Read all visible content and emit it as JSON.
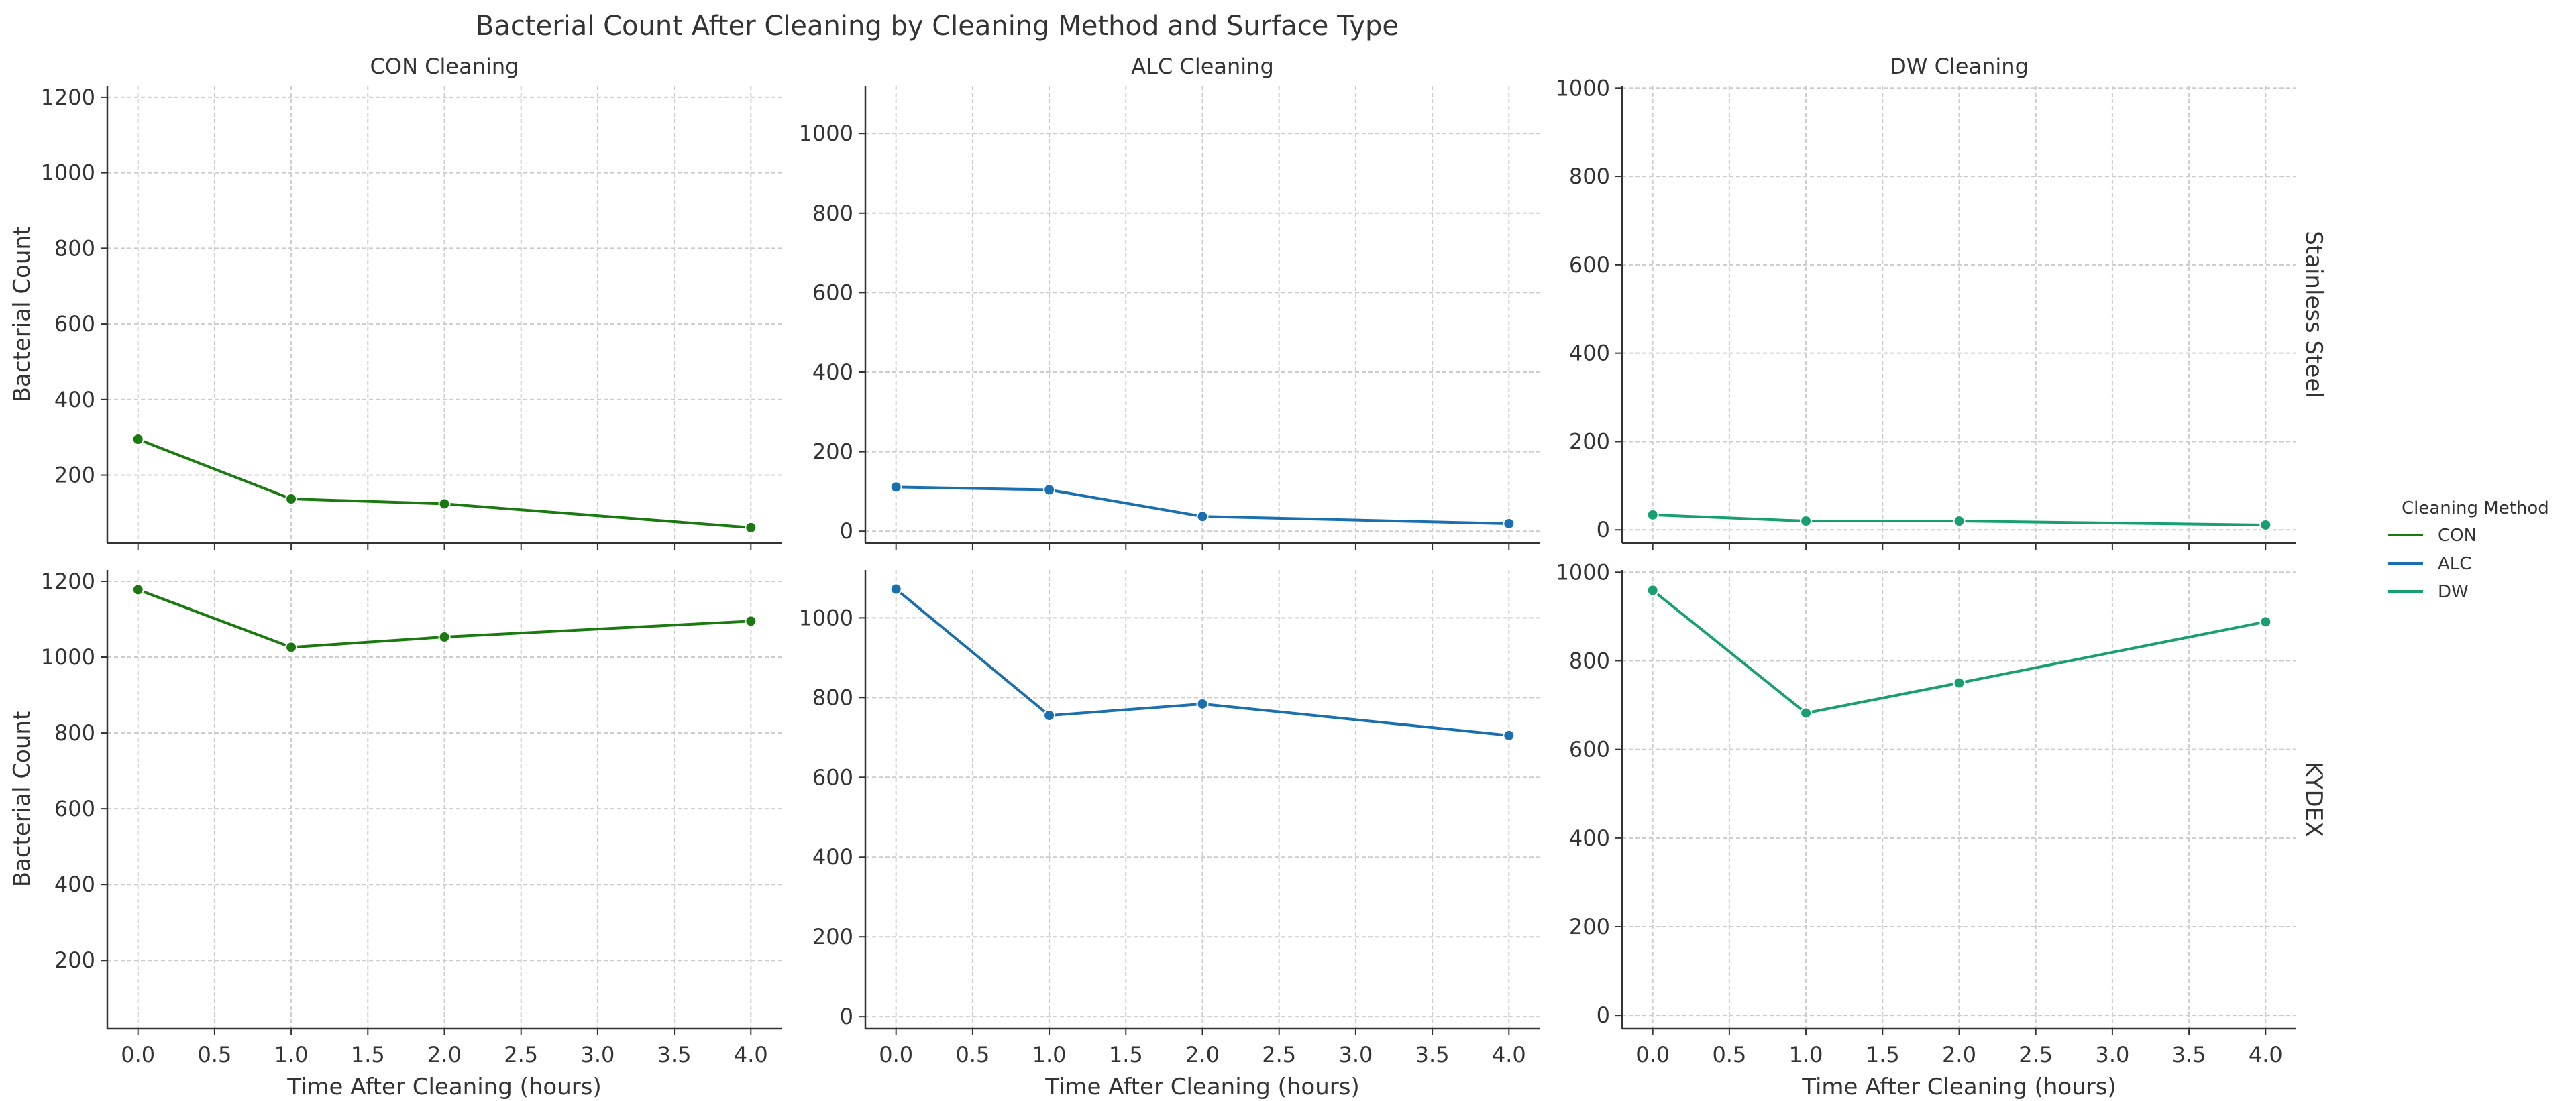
{
  "figure": {
    "title": "Bacterial Count After Cleaning by Cleaning Method and Surface Type",
    "legend": {
      "title": "Cleaning Method",
      "position": "right",
      "entries": [
        {
          "label": "CON",
          "color": "#1a7a10"
        },
        {
          "label": "ALC",
          "color": "#1a6fb0"
        },
        {
          "label": "DW",
          "color": "#17a06e"
        }
      ]
    }
  },
  "chart_data": [
    {
      "type": "line",
      "title": "CON Cleaning",
      "row_label": "",
      "xlabel": "",
      "ylabel": "Bacterial Count",
      "xlim": [
        -0.2,
        4.2
      ],
      "ylim": [
        20,
        1230
      ],
      "xticks": [
        "0.0",
        "0.5",
        "1.0",
        "1.5",
        "2.0",
        "2.5",
        "3.0",
        "3.5",
        "4.0"
      ],
      "yticks": [
        "200",
        "400",
        "600",
        "800",
        "1000",
        "1200"
      ],
      "grid": true,
      "show_xticklabels": false,
      "color": "#1a7a10",
      "x": [
        0,
        1,
        2,
        4
      ],
      "y": [
        295,
        137,
        124,
        61
      ]
    },
    {
      "type": "line",
      "title": "ALC Cleaning",
      "row_label": "",
      "xlabel": "",
      "ylabel": "",
      "xlim": [
        -0.2,
        4.2
      ],
      "ylim": [
        -30,
        1120
      ],
      "xticks": [
        "0.0",
        "0.5",
        "1.0",
        "1.5",
        "2.0",
        "2.5",
        "3.0",
        "3.5",
        "4.0"
      ],
      "yticks": [
        "0",
        "200",
        "400",
        "600",
        "800",
        "1000"
      ],
      "grid": true,
      "show_xticklabels": false,
      "color": "#1a6fb0",
      "x": [
        0,
        1,
        2,
        4
      ],
      "y": [
        111,
        104,
        37,
        19
      ]
    },
    {
      "type": "line",
      "title": "DW Cleaning",
      "row_label": "Stainless Steel",
      "xlabel": "",
      "ylabel": "",
      "xlim": [
        -0.2,
        4.2
      ],
      "ylim": [
        -30,
        1005
      ],
      "xticks": [
        "0.0",
        "0.5",
        "1.0",
        "1.5",
        "2.0",
        "2.5",
        "3.0",
        "3.5",
        "4.0"
      ],
      "yticks": [
        "0",
        "200",
        "400",
        "600",
        "800",
        "1000"
      ],
      "grid": true,
      "show_xticklabels": false,
      "color": "#17a06e",
      "x": [
        0,
        1,
        2,
        4
      ],
      "y": [
        34,
        20,
        20,
        11
      ]
    },
    {
      "type": "line",
      "title": "",
      "row_label": "",
      "xlabel": "Time After Cleaning (hours)",
      "ylabel": "Bacterial Count",
      "xlim": [
        -0.2,
        4.2
      ],
      "ylim": [
        20,
        1230
      ],
      "xticks": [
        "0.0",
        "0.5",
        "1.0",
        "1.5",
        "2.0",
        "2.5",
        "3.0",
        "3.5",
        "4.0"
      ],
      "yticks": [
        "200",
        "400",
        "600",
        "800",
        "1000",
        "1200"
      ],
      "grid": true,
      "show_xticklabels": true,
      "color": "#1a7a10",
      "x": [
        0,
        1,
        2,
        4
      ],
      "y": [
        1178,
        1026,
        1053,
        1095
      ]
    },
    {
      "type": "line",
      "title": "",
      "row_label": "",
      "xlabel": "Time After Cleaning (hours)",
      "ylabel": "",
      "xlim": [
        -0.2,
        4.2
      ],
      "ylim": [
        -30,
        1120
      ],
      "xticks": [
        "0.0",
        "0.5",
        "1.0",
        "1.5",
        "2.0",
        "2.5",
        "3.0",
        "3.5",
        "4.0"
      ],
      "yticks": [
        "0",
        "200",
        "400",
        "600",
        "800",
        "1000"
      ],
      "grid": true,
      "show_xticklabels": true,
      "color": "#1a6fb0",
      "x": [
        0,
        1,
        2,
        4
      ],
      "y": [
        1072,
        755,
        784,
        705
      ]
    },
    {
      "type": "line",
      "title": "",
      "row_label": "KYDEX",
      "xlabel": "Time After Cleaning (hours)",
      "ylabel": "",
      "xlim": [
        -0.2,
        4.2
      ],
      "ylim": [
        -30,
        1005
      ],
      "xticks": [
        "0.0",
        "0.5",
        "1.0",
        "1.5",
        "2.0",
        "2.5",
        "3.0",
        "3.5",
        "4.0"
      ],
      "yticks": [
        "0",
        "200",
        "400",
        "600",
        "800",
        "1000"
      ],
      "grid": true,
      "show_xticklabels": true,
      "color": "#17a06e",
      "x": [
        0,
        1,
        2,
        4
      ],
      "y": [
        959,
        682,
        750,
        888
      ]
    }
  ]
}
